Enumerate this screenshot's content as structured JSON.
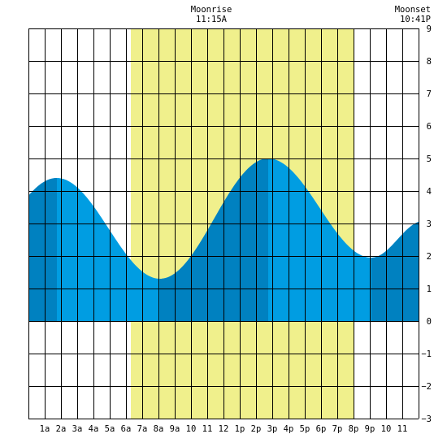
{
  "chart_data": {
    "type": "area",
    "title": "",
    "xlabel": "",
    "ylabel": "",
    "xlim": [
      0,
      24
    ],
    "ylim": [
      -3,
      9
    ],
    "y_ticks": [
      9,
      8,
      7,
      6,
      5,
      4,
      3,
      2,
      1,
      0,
      -1,
      -2,
      -3
    ],
    "x_tick_labels": [
      "1a",
      "2a",
      "3a",
      "4a",
      "5a",
      "6a",
      "7a",
      "8a",
      "9a",
      "10",
      "11",
      "12",
      "1p",
      "2p",
      "3p",
      "4p",
      "5p",
      "6p",
      "7p",
      "8p",
      "9p",
      "10",
      "11"
    ],
    "grid": true,
    "daylight": {
      "start_hour": 6.3,
      "end_hour": 20.0,
      "color": "#f0f08c"
    },
    "tide_extremes": [
      {
        "hour": 1.75,
        "value": 4.4,
        "kind": "high"
      },
      {
        "hour": 8.1,
        "value": 1.3,
        "kind": "low"
      },
      {
        "hour": 14.75,
        "value": 5.0,
        "kind": "high"
      },
      {
        "hour": 21.1,
        "value": 1.95,
        "kind": "low"
      }
    ],
    "tide_end_value": 3.05,
    "dark_bands": [
      [
        0,
        1.75
      ],
      [
        8.1,
        14.75
      ],
      [
        21.1,
        24
      ]
    ],
    "colors": {
      "tide": "#009de2",
      "tide_dark": "#0081c0",
      "grid": "#000000",
      "background": "#ffffff"
    }
  },
  "moonrise": {
    "label": "Moonrise",
    "time": "11:15A",
    "hour": 11.25
  },
  "moonset": {
    "label": "Moonset",
    "time": "10:41P",
    "hour": 22.68
  }
}
